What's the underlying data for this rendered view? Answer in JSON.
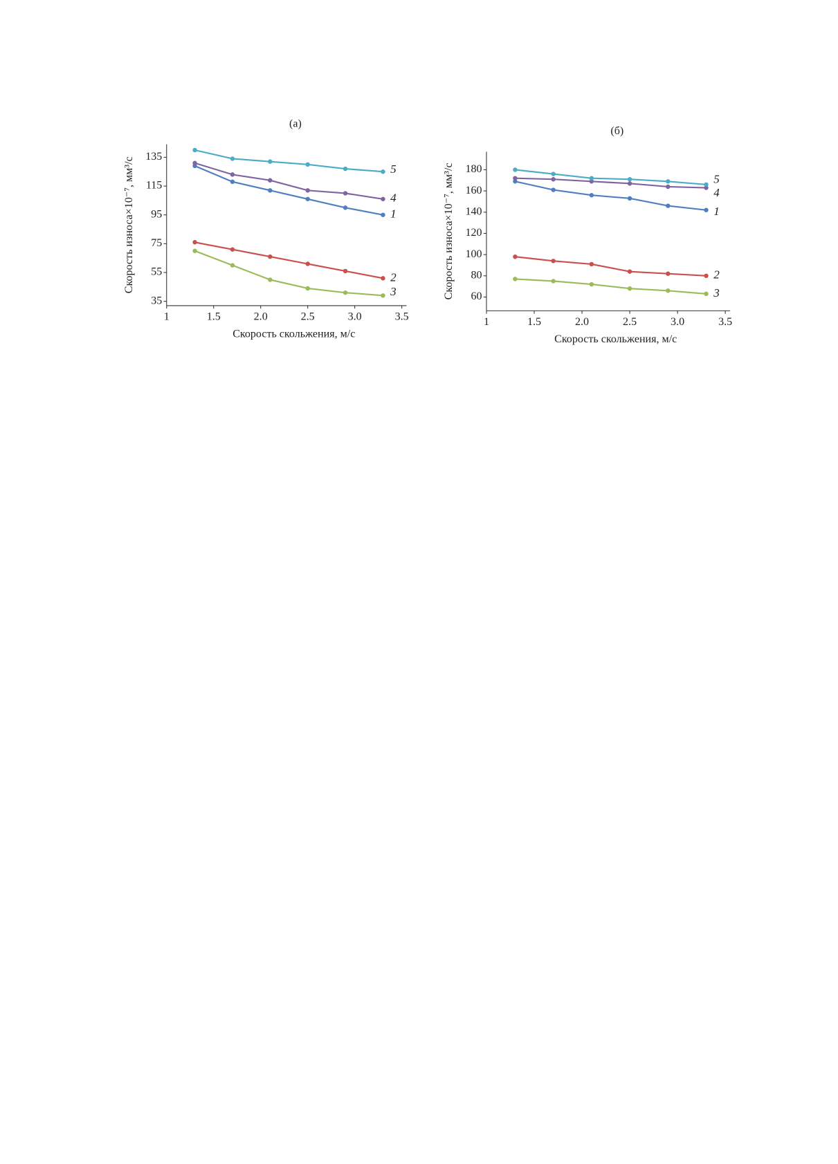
{
  "chart_data": [
    {
      "type": "line",
      "title": "(а)",
      "x_label": "Скорость скольжения, м/с",
      "y_label": "Скорость износа×10⁻⁷, мм³/с",
      "x": [
        1.3,
        1.7,
        2.1,
        2.5,
        2.9,
        3.3
      ],
      "xlim": [
        1,
        3.55
      ],
      "xticks": [
        1,
        1.5,
        {
          "value": 2,
          "label": "2.0"
        },
        2.5,
        {
          "value": 3,
          "label": "3.0"
        },
        3.5
      ],
      "ylim": [
        32,
        144
      ],
      "yticks": [
        35,
        55,
        75,
        95,
        115,
        135
      ],
      "series": [
        {
          "name": "1",
          "color": "#4f7fbf",
          "values": [
            129,
            118,
            112,
            106,
            100,
            95
          ]
        },
        {
          "name": "2",
          "color": "#c9504f",
          "values": [
            76,
            71,
            66,
            61,
            56,
            51
          ]
        },
        {
          "name": "3",
          "color": "#9bbb59",
          "values": [
            70,
            60,
            50,
            44,
            41,
            39
          ]
        },
        {
          "name": "4",
          "color": "#8064a2",
          "values": [
            131,
            123,
            119,
            112,
            110,
            106
          ]
        },
        {
          "name": "5",
          "color": "#4bacc6",
          "values": [
            140,
            134,
            132,
            130,
            127,
            125
          ]
        }
      ]
    },
    {
      "type": "line",
      "title": "(б)",
      "x_label": "Скорость скольжения, м/с",
      "y_label": "Скорость износа×10⁻⁷, мм³/с",
      "x": [
        1.3,
        1.7,
        2.1,
        2.5,
        2.9,
        3.3
      ],
      "xlim": [
        1,
        3.55
      ],
      "xticks": [
        1,
        1.5,
        {
          "value": 2,
          "label": "2.0"
        },
        2.5,
        {
          "value": 3,
          "label": "3.0"
        },
        3.5
      ],
      "ylim": [
        47,
        197
      ],
      "yticks": [
        60,
        80,
        100,
        120,
        140,
        160,
        180
      ],
      "series": [
        {
          "name": "1",
          "color": "#4f7fbf",
          "values": [
            169,
            161,
            156,
            153,
            146,
            142
          ]
        },
        {
          "name": "2",
          "color": "#c9504f",
          "values": [
            98,
            94,
            91,
            84,
            82,
            80
          ]
        },
        {
          "name": "3",
          "color": "#9bbb59",
          "values": [
            77,
            75,
            72,
            68,
            66,
            63
          ]
        },
        {
          "name": "4",
          "color": "#8064a2",
          "values": [
            172,
            171,
            169,
            167,
            164,
            163
          ]
        },
        {
          "name": "5",
          "color": "#4bacc6",
          "values": [
            180,
            176,
            172,
            171,
            169,
            166
          ]
        }
      ]
    }
  ]
}
